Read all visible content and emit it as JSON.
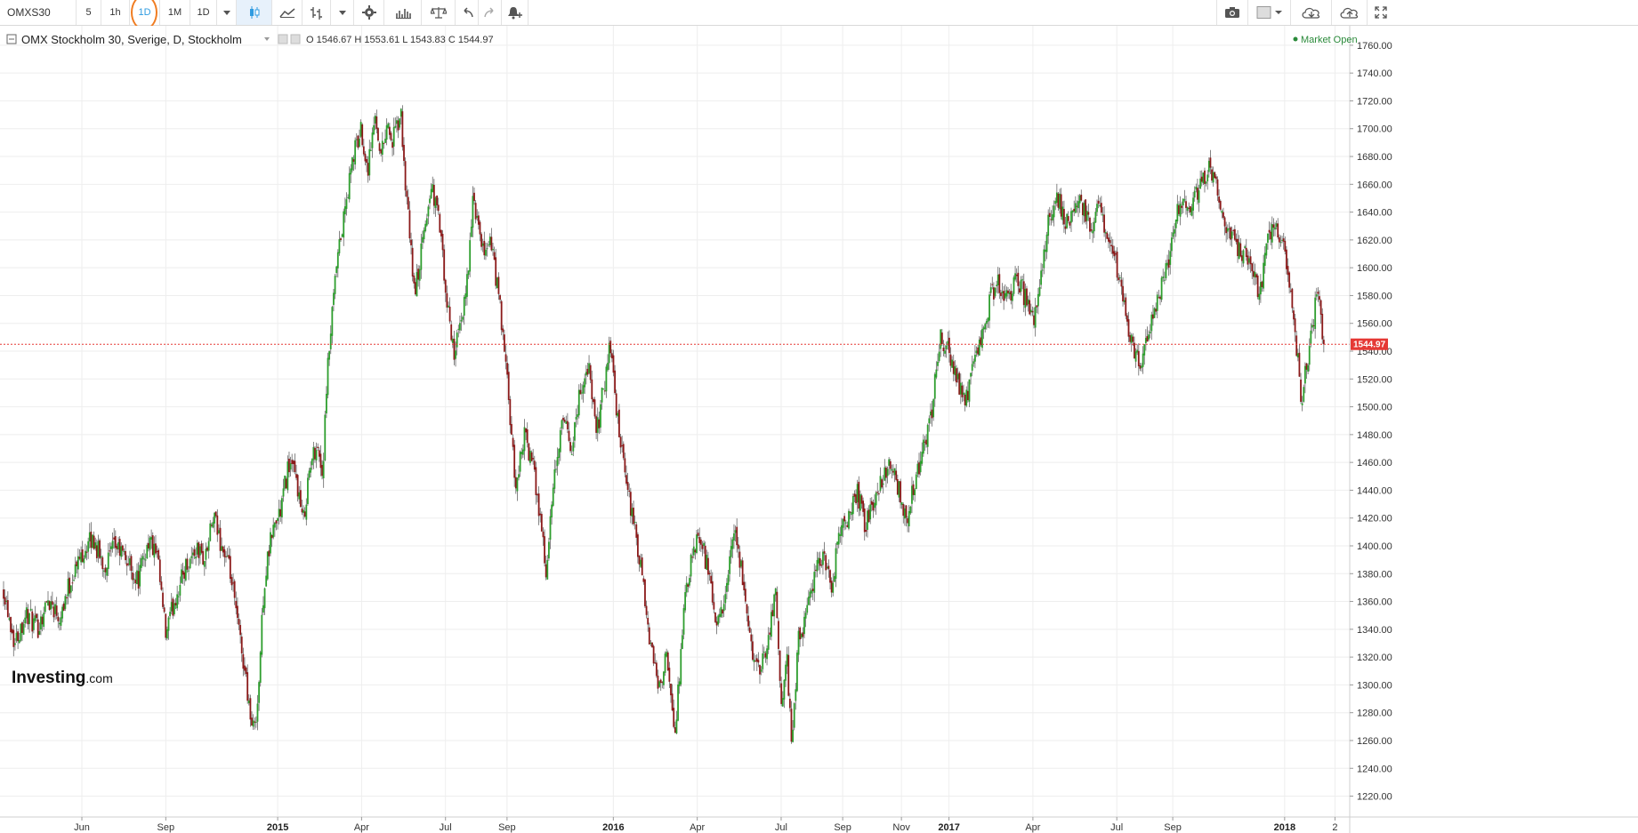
{
  "toolbar": {
    "symbol": "OMXS30",
    "intervals": [
      "5",
      "1h",
      "1D",
      "1M",
      "1D"
    ],
    "active_interval_index": 2,
    "accent_color": "#2f9be0",
    "highlight_color": "#f07d22",
    "icons": [
      "dropdown-icon",
      "candles-icon",
      "area-chart-icon",
      "bars-icon",
      "dropdown-icon",
      "settings-gear-icon",
      "indicators-icon",
      "compare-scale-icon",
      "undo-icon",
      "redo-icon",
      "add-alert-icon",
      "camera-icon",
      "color-square-icon",
      "cloud-download-icon",
      "cloud-upload-icon",
      "fullscreen-icon"
    ]
  },
  "legend": {
    "title": "OMX Stockholm 30, Sverige, D, Stockholm",
    "ohlc": "O 1546.67 H 1553.61 L 1543.83 C 1544.97"
  },
  "market_status": "Market Open",
  "brand": {
    "name": "Investing",
    "suffix": ".com"
  },
  "colors": {
    "up": "#2e9e2e",
    "down": "#8b1a1a",
    "last_price": "#e53935",
    "grid": "#eeeeee"
  },
  "chart_data": {
    "type": "candlestick",
    "title": "OMX Stockholm 30, Sverige, D, Stockholm",
    "ylim": [
      1210,
      1770
    ],
    "y_ticks": [
      1220,
      1240,
      1260,
      1280,
      1300,
      1320,
      1340,
      1360,
      1380,
      1400,
      1420,
      1440,
      1460,
      1480,
      1500,
      1520,
      1540,
      1560,
      1580,
      1600,
      1620,
      1640,
      1660,
      1680,
      1700,
      1720,
      1740,
      1760
    ],
    "x_ticks": [
      {
        "label": "Jun",
        "t": 1.0
      },
      {
        "label": "Sep",
        "t": 4.0
      },
      {
        "label": "2015",
        "t": 8.0,
        "bold": true
      },
      {
        "label": "Apr",
        "t": 11.0
      },
      {
        "label": "Jul",
        "t": 14.0
      },
      {
        "label": "Sep",
        "t": 16.2
      },
      {
        "label": "2016",
        "t": 20.0,
        "bold": true
      },
      {
        "label": "Apr",
        "t": 23.0
      },
      {
        "label": "Jul",
        "t": 26.0
      },
      {
        "label": "Sep",
        "t": 28.2
      },
      {
        "label": "Nov",
        "t": 30.3
      },
      {
        "label": "2017",
        "t": 32.0,
        "bold": true
      },
      {
        "label": "Apr",
        "t": 35.0
      },
      {
        "label": "Jul",
        "t": 38.0
      },
      {
        "label": "Sep",
        "t": 40.0
      },
      {
        "label": "2018",
        "t": 44.0,
        "bold": true
      },
      {
        "label": "2",
        "t": 45.8
      }
    ],
    "x_domain": [
      -1.8,
      46.2
    ],
    "last_price": 1544.97,
    "last_price_label": "1544.97",
    "path": [
      [
        -1.8,
        1370
      ],
      [
        -1.4,
        1330
      ],
      [
        -1.0,
        1352
      ],
      [
        -0.6,
        1340
      ],
      [
        -0.2,
        1362
      ],
      [
        0.2,
        1350
      ],
      [
        0.6,
        1375
      ],
      [
        1.0,
        1395
      ],
      [
        1.4,
        1405
      ],
      [
        1.8,
        1385
      ],
      [
        2.2,
        1400
      ],
      [
        2.6,
        1390
      ],
      [
        3.0,
        1375
      ],
      [
        3.4,
        1405
      ],
      [
        3.7,
        1390
      ],
      [
        4.0,
        1335
      ],
      [
        4.3,
        1360
      ],
      [
        4.7,
        1385
      ],
      [
        5.1,
        1398
      ],
      [
        5.4,
        1390
      ],
      [
        5.7,
        1420
      ],
      [
        6.0,
        1400
      ],
      [
        6.3,
        1380
      ],
      [
        6.6,
        1340
      ],
      [
        6.9,
        1300
      ],
      [
        7.1,
        1265
      ],
      [
        7.3,
        1290
      ],
      [
        7.5,
        1370
      ],
      [
        7.8,
        1410
      ],
      [
        8.1,
        1425
      ],
      [
        8.4,
        1460
      ],
      [
        8.7,
        1445
      ],
      [
        8.9,
        1415
      ],
      [
        9.1,
        1450
      ],
      [
        9.4,
        1475
      ],
      [
        9.6,
        1450
      ],
      [
        9.8,
        1530
      ],
      [
        10.1,
        1600
      ],
      [
        10.4,
        1640
      ],
      [
        10.7,
        1680
      ],
      [
        11.0,
        1700
      ],
      [
        11.2,
        1670
      ],
      [
        11.5,
        1710
      ],
      [
        11.7,
        1680
      ],
      [
        11.9,
        1705
      ],
      [
        12.1,
        1690
      ],
      [
        12.4,
        1710
      ],
      [
        12.6,
        1650
      ],
      [
        12.9,
        1580
      ],
      [
        13.2,
        1620
      ],
      [
        13.5,
        1660
      ],
      [
        13.8,
        1630
      ],
      [
        14.0,
        1580
      ],
      [
        14.3,
        1540
      ],
      [
        14.6,
        1560
      ],
      [
        14.8,
        1600
      ],
      [
        15.0,
        1650
      ],
      [
        15.3,
        1610
      ],
      [
        15.6,
        1620
      ],
      [
        15.9,
        1580
      ],
      [
        16.2,
        1520
      ],
      [
        16.5,
        1440
      ],
      [
        16.8,
        1480
      ],
      [
        17.1,
        1460
      ],
      [
        17.4,
        1420
      ],
      [
        17.6,
        1380
      ],
      [
        17.9,
        1450
      ],
      [
        18.2,
        1490
      ],
      [
        18.5,
        1470
      ],
      [
        18.8,
        1510
      ],
      [
        19.1,
        1530
      ],
      [
        19.4,
        1480
      ],
      [
        19.7,
        1520
      ],
      [
        19.9,
        1545
      ],
      [
        20.1,
        1500
      ],
      [
        20.4,
        1450
      ],
      [
        20.7,
        1420
      ],
      [
        21.0,
        1380
      ],
      [
        21.3,
        1330
      ],
      [
        21.6,
        1300
      ],
      [
        21.9,
        1320
      ],
      [
        22.2,
        1260
      ],
      [
        22.5,
        1350
      ],
      [
        22.8,
        1390
      ],
      [
        23.1,
        1410
      ],
      [
        23.4,
        1380
      ],
      [
        23.7,
        1340
      ],
      [
        24.0,
        1360
      ],
      [
        24.3,
        1410
      ],
      [
        24.6,
        1380
      ],
      [
        24.9,
        1330
      ],
      [
        25.2,
        1310
      ],
      [
        25.5,
        1330
      ],
      [
        25.8,
        1370
      ],
      [
        26.0,
        1280
      ],
      [
        26.2,
        1320
      ],
      [
        26.4,
        1255
      ],
      [
        26.6,
        1330
      ],
      [
        26.9,
        1350
      ],
      [
        27.2,
        1380
      ],
      [
        27.5,
        1395
      ],
      [
        27.8,
        1370
      ],
      [
        28.1,
        1410
      ],
      [
        28.4,
        1420
      ],
      [
        28.7,
        1440
      ],
      [
        29.0,
        1415
      ],
      [
        29.3,
        1430
      ],
      [
        29.6,
        1450
      ],
      [
        29.9,
        1460
      ],
      [
        30.2,
        1440
      ],
      [
        30.5,
        1420
      ],
      [
        30.8,
        1450
      ],
      [
        31.1,
        1470
      ],
      [
        31.4,
        1500
      ],
      [
        31.7,
        1550
      ],
      [
        32.0,
        1540
      ],
      [
        32.3,
        1520
      ],
      [
        32.6,
        1505
      ],
      [
        32.9,
        1530
      ],
      [
        33.2,
        1550
      ],
      [
        33.5,
        1580
      ],
      [
        33.8,
        1590
      ],
      [
        34.1,
        1575
      ],
      [
        34.4,
        1595
      ],
      [
        34.7,
        1580
      ],
      [
        35.0,
        1560
      ],
      [
        35.3,
        1600
      ],
      [
        35.6,
        1640
      ],
      [
        35.9,
        1650
      ],
      [
        36.2,
        1630
      ],
      [
        36.5,
        1650
      ],
      [
        36.8,
        1640
      ],
      [
        37.1,
        1630
      ],
      [
        37.4,
        1645
      ],
      [
        37.7,
        1620
      ],
      [
        38.0,
        1600
      ],
      [
        38.3,
        1570
      ],
      [
        38.6,
        1540
      ],
      [
        38.9,
        1530
      ],
      [
        39.2,
        1560
      ],
      [
        39.5,
        1580
      ],
      [
        39.8,
        1600
      ],
      [
        40.1,
        1640
      ],
      [
        40.4,
        1650
      ],
      [
        40.7,
        1645
      ],
      [
        41.0,
        1660
      ],
      [
        41.3,
        1675
      ],
      [
        41.6,
        1660
      ],
      [
        41.9,
        1630
      ],
      [
        42.2,
        1620
      ],
      [
        42.5,
        1610
      ],
      [
        42.8,
        1600
      ],
      [
        43.1,
        1580
      ],
      [
        43.4,
        1620
      ],
      [
        43.7,
        1630
      ],
      [
        44.0,
        1610
      ],
      [
        44.2,
        1580
      ],
      [
        44.4,
        1550
      ],
      [
        44.6,
        1505
      ],
      [
        44.8,
        1530
      ],
      [
        45.0,
        1560
      ],
      [
        45.2,
        1585
      ],
      [
        45.4,
        1545
      ]
    ]
  }
}
